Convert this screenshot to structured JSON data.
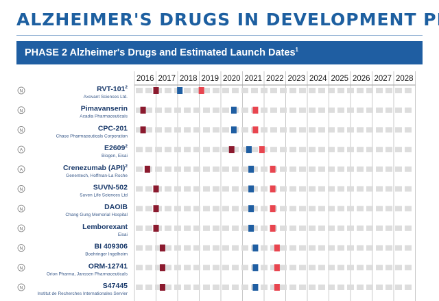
{
  "title": "ALZHEIMER'S DRUGS IN DEVELOPMENT PIPELINE",
  "banner": {
    "text": "PHASE 2 Alzheimer's Drugs and Estimated Launch Dates",
    "sup": "1"
  },
  "colors": {
    "brand_blue": "#1d5fa0",
    "banner_bg": "#1f5ea2",
    "dark_red": "#8b1a2e",
    "blue": "#1f5ea2",
    "light_red": "#e8454f",
    "track": "#dddddd",
    "label_navy": "#1a3a6b"
  },
  "chart_data": {
    "type": "table",
    "legend": {
      "note": "Three markers per drug on a year timeline; the legend is not visible in the screenshot, so markers are described by colour only.",
      "markers": [
        "dark-red",
        "blue",
        "light-red"
      ]
    },
    "years": [
      "2016",
      "2017",
      "2018",
      "2019",
      "2020",
      "2021",
      "2022",
      "2023",
      "2024",
      "2025",
      "2026",
      "2027",
      "2028"
    ],
    "drugs": [
      {
        "name": "RVT-101",
        "sup": "2",
        "company": "Axovant Sciences Ltd.",
        "badge": "N",
        "dark_red": 2017.0,
        "blue": 2018.1,
        "light_red": 2019.1
      },
      {
        "name": "Pimavanserin",
        "sup": "",
        "company": "Acadia Pharmaceuticals",
        "badge": "N",
        "dark_red": 2016.4,
        "blue": 2020.6,
        "light_red": 2021.6
      },
      {
        "name": "CPC-201",
        "sup": "",
        "company": "Chase Pharmaceuticals Corporation",
        "badge": "N",
        "dark_red": 2016.4,
        "blue": 2020.6,
        "light_red": 2021.6
      },
      {
        "name": "E2609",
        "sup": "2",
        "company": "Biogen, Eisai",
        "badge": "A",
        "dark_red": 2020.5,
        "blue": 2021.3,
        "light_red": 2021.9
      },
      {
        "name": "Crenezumab (API)",
        "sup": "2",
        "company": "Genentech, Hoffman-La Roche",
        "badge": "A",
        "dark_red": 2016.6,
        "blue": 2021.4,
        "light_red": 2022.4
      },
      {
        "name": "SUVN-502",
        "sup": "",
        "company": "Suven Life Sciences Ltd",
        "badge": "N",
        "dark_red": 2017.0,
        "blue": 2021.4,
        "light_red": 2022.4
      },
      {
        "name": "DAOIB",
        "sup": "",
        "company": "Chang Gung Memorial Hospital",
        "badge": "N",
        "dark_red": 2017.0,
        "blue": 2021.4,
        "light_red": 2022.4
      },
      {
        "name": "Lemborexant",
        "sup": "",
        "company": "Eisai",
        "badge": "N",
        "dark_red": 2017.0,
        "blue": 2021.4,
        "light_red": 2022.4
      },
      {
        "name": "BI 409306",
        "sup": "",
        "company": "Boehringer Ingelheim",
        "badge": "N",
        "dark_red": 2017.3,
        "blue": 2021.6,
        "light_red": 2022.6
      },
      {
        "name": "ORM-12741",
        "sup": "",
        "company": "Orion Pharma, Janssen Pharmaceuticals",
        "badge": "N",
        "dark_red": 2017.3,
        "blue": 2021.6,
        "light_red": 2022.6
      },
      {
        "name": "S47445",
        "sup": "",
        "company": "Institut de Recherches Internationales Servier",
        "badge": "N",
        "dark_red": 2017.3,
        "blue": 2021.6,
        "light_red": 2022.6
      }
    ]
  }
}
